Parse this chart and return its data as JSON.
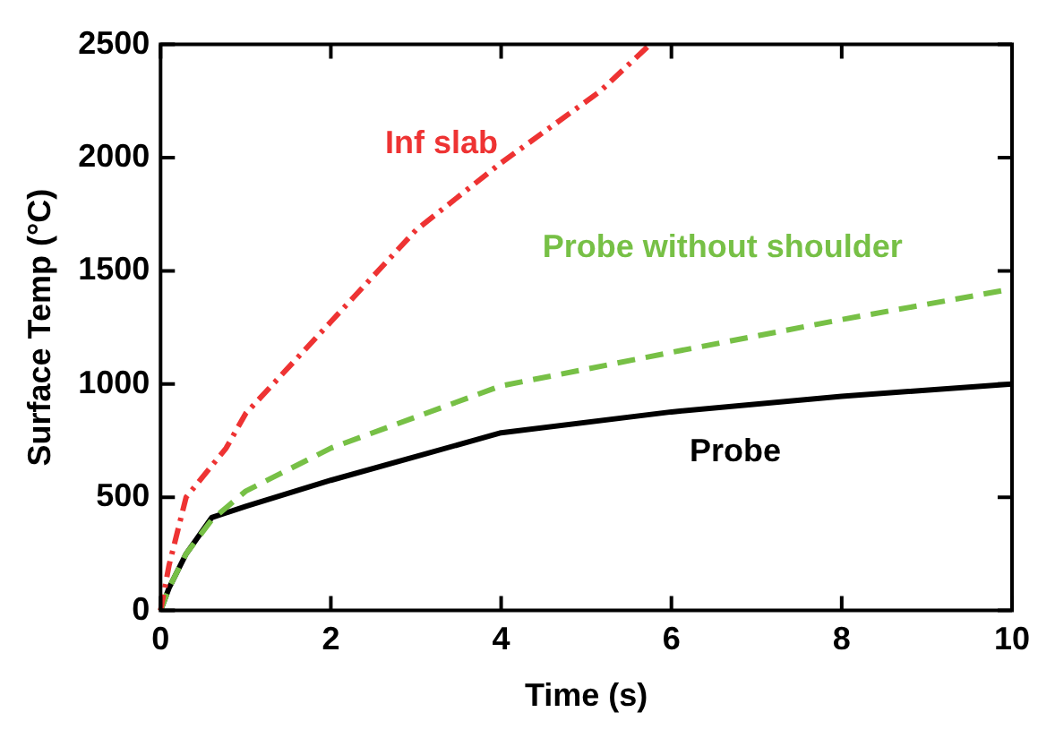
{
  "chart_data": {
    "type": "line",
    "xlabel": "Time (s)",
    "ylabel": "Surface Temp (°C)",
    "xlim": [
      0,
      10
    ],
    "xticks": [
      0,
      2,
      4,
      6,
      8,
      10
    ],
    "ylim": [
      0,
      2500
    ],
    "yticks": [
      0,
      500,
      1000,
      1500,
      2000,
      2500
    ],
    "grid": false,
    "legend": false,
    "marker": "none",
    "series": [
      {
        "name": "Inf slab",
        "color": "#ee3333",
        "line_style": "dashdot",
        "x": [
          0,
          0.1,
          0.3,
          0.77,
          1,
          2,
          3,
          4,
          5.16,
          5.75
        ],
        "values": [
          0,
          200,
          500,
          717,
          870,
          1275,
          1680,
          1977,
          2292,
          2500
        ]
      },
      {
        "name": "Probe without shoulder",
        "color": "#77c046",
        "line_style": "dashed",
        "x": [
          0,
          0.1,
          0.3,
          0.6,
          1,
          2,
          4,
          6,
          8,
          10
        ],
        "values": [
          0,
          100,
          250,
          400,
          527,
          717,
          992,
          1140,
          1285,
          1420
        ]
      },
      {
        "name": "Probe",
        "color": "#000000",
        "line_style": "solid",
        "x": [
          0,
          0.1,
          0.3,
          0.6,
          1,
          2,
          4,
          6,
          8,
          10
        ],
        "values": [
          0,
          100,
          250,
          410,
          460,
          575,
          785,
          877,
          946,
          1000
        ]
      }
    ]
  }
}
